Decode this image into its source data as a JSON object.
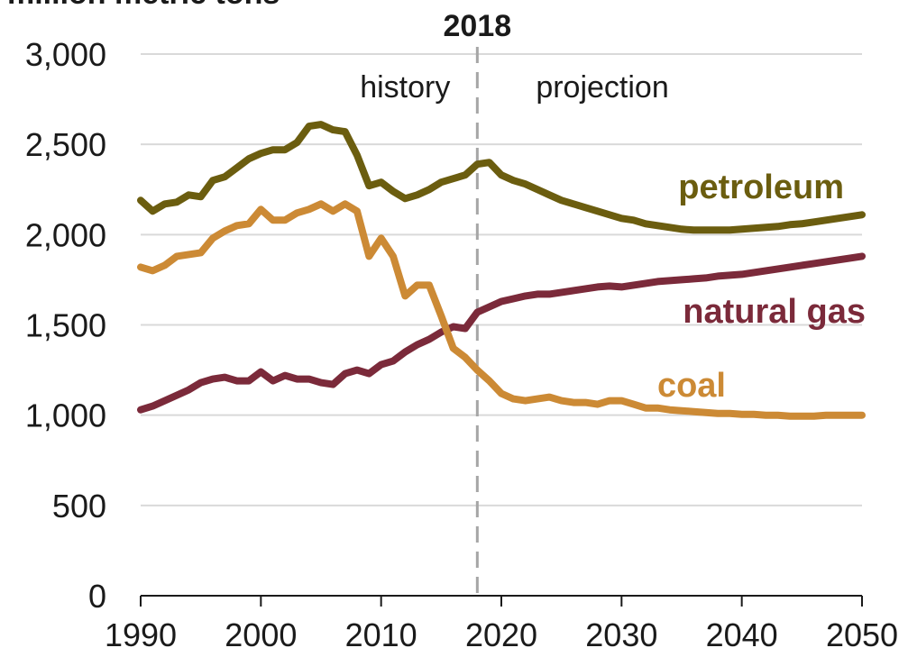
{
  "chart_data": {
    "type": "line",
    "unit_label": "million metric tons",
    "x_ticks": [
      1990,
      2000,
      2010,
      2020,
      2030,
      2040,
      2050
    ],
    "y_ticks": [
      0,
      500,
      1000,
      1500,
      2000,
      2500,
      3000
    ],
    "xlim": [
      1990,
      2050
    ],
    "ylim": [
      0,
      3000
    ],
    "grid": "horizontal",
    "divider": {
      "year": 2018,
      "label": "2018",
      "left_label": "history",
      "right_label": "projection"
    },
    "series": [
      {
        "name": "petroleum",
        "color": "#6b5d0f",
        "x": [
          1990,
          1991,
          1992,
          1993,
          1994,
          1995,
          1996,
          1997,
          1998,
          1999,
          2000,
          2001,
          2002,
          2003,
          2004,
          2005,
          2006,
          2007,
          2008,
          2009,
          2010,
          2011,
          2012,
          2013,
          2014,
          2015,
          2016,
          2017,
          2018,
          2019,
          2020,
          2021,
          2022,
          2023,
          2024,
          2025,
          2026,
          2027,
          2028,
          2029,
          2030,
          2031,
          2032,
          2033,
          2034,
          2035,
          2036,
          2037,
          2038,
          2039,
          2040,
          2041,
          2042,
          2043,
          2044,
          2045,
          2046,
          2047,
          2048,
          2049,
          2050
        ],
        "values": [
          2190,
          2130,
          2170,
          2180,
          2220,
          2210,
          2300,
          2320,
          2370,
          2420,
          2450,
          2470,
          2470,
          2510,
          2600,
          2610,
          2580,
          2570,
          2440,
          2270,
          2290,
          2240,
          2200,
          2220,
          2250,
          2290,
          2310,
          2330,
          2390,
          2400,
          2330,
          2300,
          2280,
          2250,
          2220,
          2190,
          2170,
          2150,
          2130,
          2110,
          2090,
          2080,
          2060,
          2050,
          2040,
          2030,
          2025,
          2025,
          2025,
          2025,
          2030,
          2035,
          2040,
          2045,
          2055,
          2060,
          2070,
          2080,
          2090,
          2100,
          2110
        ]
      },
      {
        "name": "natural gas",
        "color": "#7b2a3a",
        "x": [
          1990,
          1991,
          1992,
          1993,
          1994,
          1995,
          1996,
          1997,
          1998,
          1999,
          2000,
          2001,
          2002,
          2003,
          2004,
          2005,
          2006,
          2007,
          2008,
          2009,
          2010,
          2011,
          2012,
          2013,
          2014,
          2015,
          2016,
          2017,
          2018,
          2019,
          2020,
          2021,
          2022,
          2023,
          2024,
          2025,
          2026,
          2027,
          2028,
          2029,
          2030,
          2031,
          2032,
          2033,
          2034,
          2035,
          2036,
          2037,
          2038,
          2039,
          2040,
          2041,
          2042,
          2043,
          2044,
          2045,
          2046,
          2047,
          2048,
          2049,
          2050
        ],
        "values": [
          1030,
          1050,
          1080,
          1110,
          1140,
          1180,
          1200,
          1210,
          1190,
          1190,
          1240,
          1190,
          1220,
          1200,
          1200,
          1180,
          1170,
          1230,
          1250,
          1230,
          1280,
          1300,
          1350,
          1390,
          1420,
          1460,
          1490,
          1480,
          1570,
          1600,
          1630,
          1645,
          1660,
          1670,
          1670,
          1680,
          1690,
          1700,
          1710,
          1715,
          1710,
          1720,
          1730,
          1740,
          1745,
          1750,
          1755,
          1760,
          1770,
          1775,
          1780,
          1790,
          1800,
          1810,
          1820,
          1830,
          1840,
          1850,
          1860,
          1870,
          1880
        ]
      },
      {
        "name": "coal",
        "color": "#cc8a35",
        "x": [
          1990,
          1991,
          1992,
          1993,
          1994,
          1995,
          1996,
          1997,
          1998,
          1999,
          2000,
          2001,
          2002,
          2003,
          2004,
          2005,
          2006,
          2007,
          2008,
          2009,
          2010,
          2011,
          2012,
          2013,
          2014,
          2015,
          2016,
          2017,
          2018,
          2019,
          2020,
          2021,
          2022,
          2023,
          2024,
          2025,
          2026,
          2027,
          2028,
          2029,
          2030,
          2031,
          2032,
          2033,
          2034,
          2035,
          2036,
          2037,
          2038,
          2039,
          2040,
          2041,
          2042,
          2043,
          2044,
          2045,
          2046,
          2047,
          2048,
          2049,
          2050
        ],
        "values": [
          1820,
          1800,
          1830,
          1880,
          1890,
          1900,
          1980,
          2020,
          2050,
          2060,
          2140,
          2080,
          2080,
          2120,
          2140,
          2170,
          2130,
          2170,
          2130,
          1880,
          1980,
          1880,
          1660,
          1720,
          1720,
          1550,
          1370,
          1320,
          1250,
          1190,
          1120,
          1090,
          1080,
          1090,
          1100,
          1080,
          1070,
          1070,
          1060,
          1080,
          1080,
          1060,
          1040,
          1040,
          1030,
          1025,
          1020,
          1015,
          1010,
          1010,
          1005,
          1005,
          1000,
          1000,
          995,
          995,
          995,
          1000,
          1000,
          1000,
          1000
        ]
      }
    ]
  }
}
